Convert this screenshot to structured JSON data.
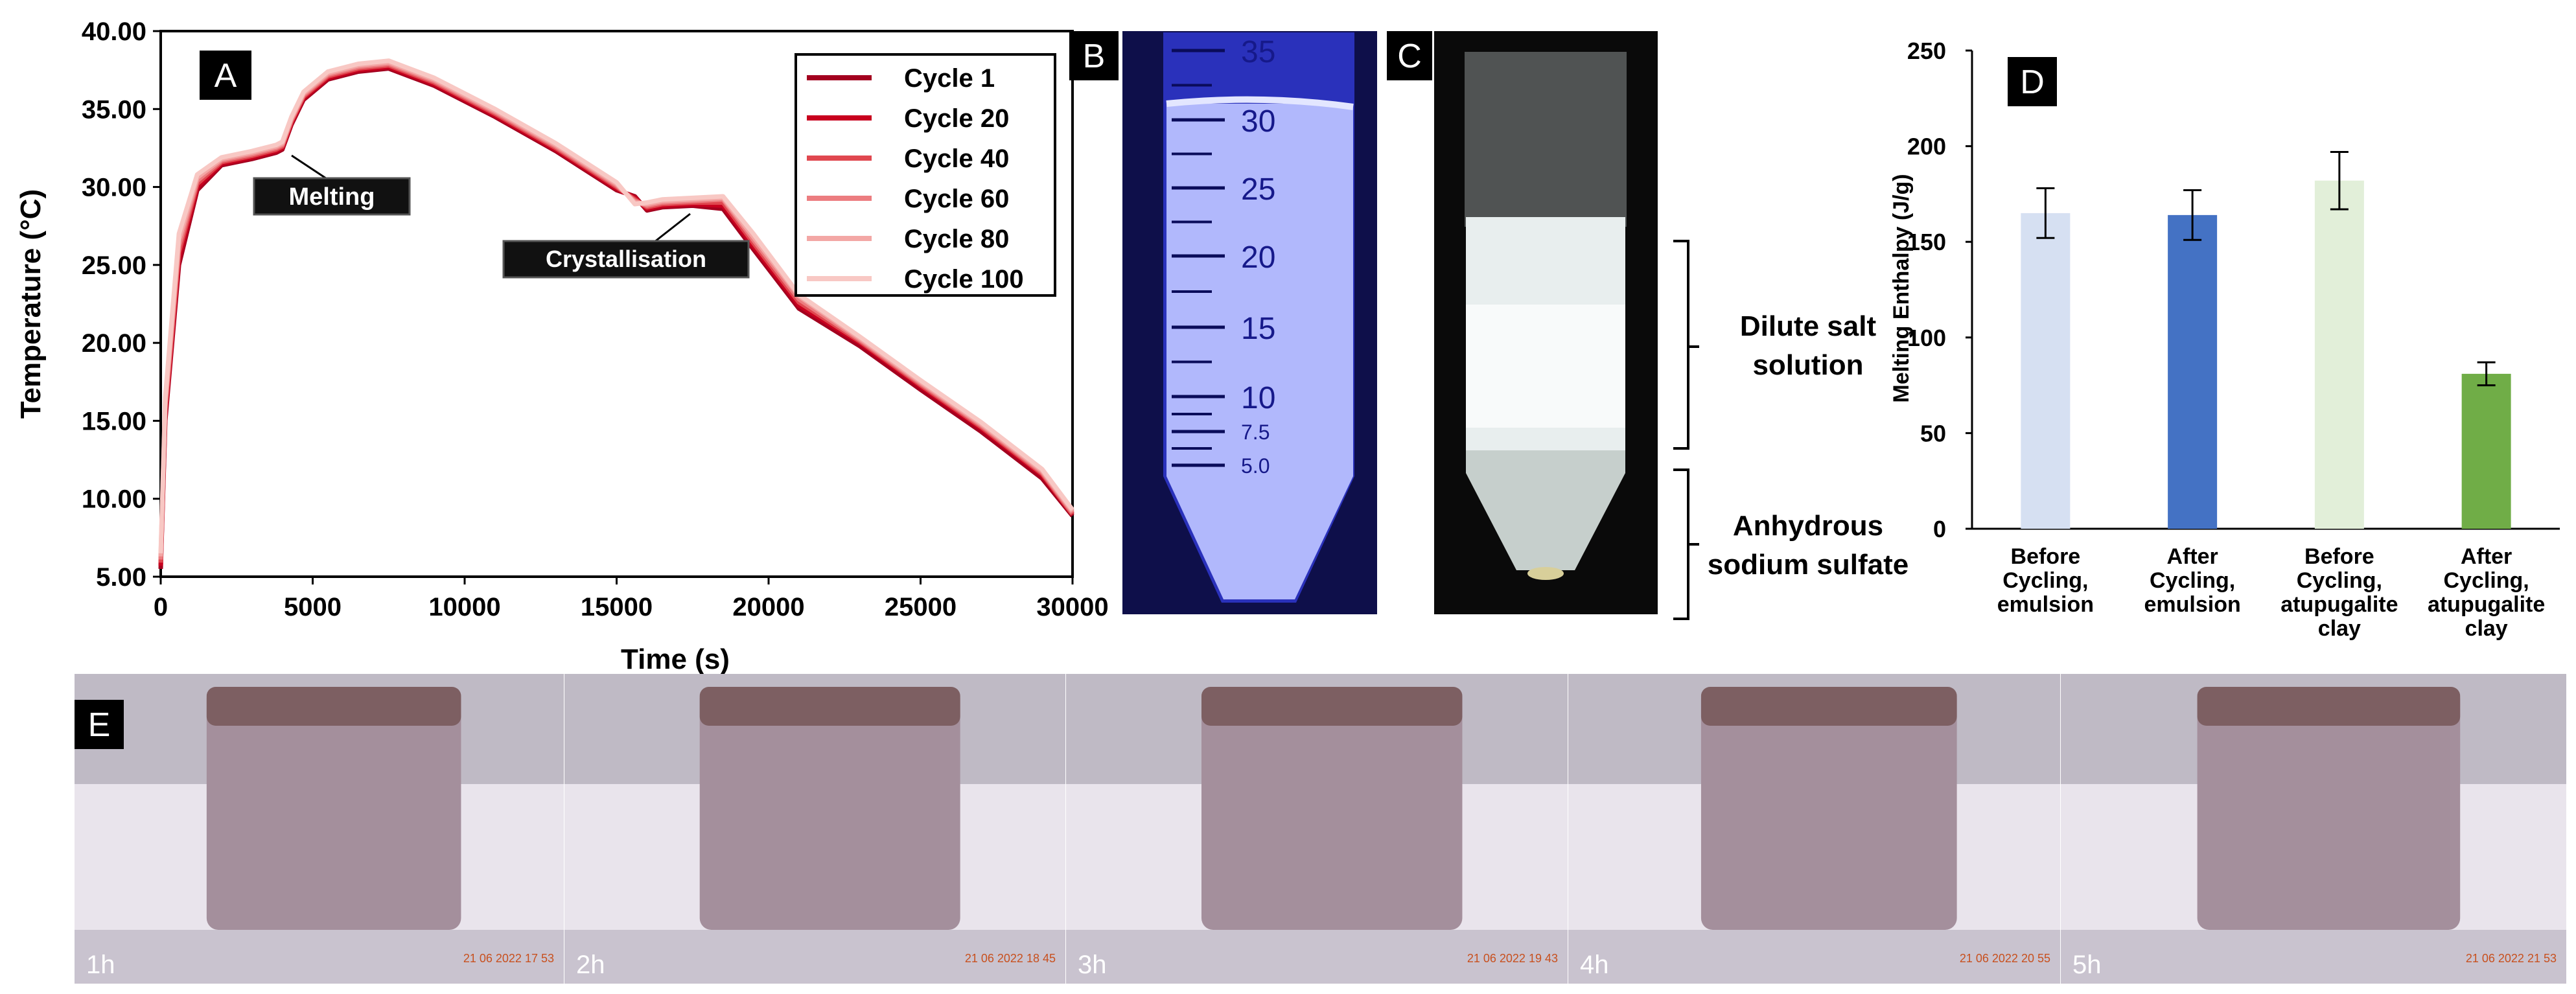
{
  "panels": {
    "a": "A",
    "b": "B",
    "c": "C",
    "d": "D",
    "e": "E"
  },
  "colors": {
    "panel_a_series": [
      "#a3001f",
      "#c8001e",
      "#e0474f",
      "#ec7d80",
      "#f3a7a5",
      "#f8c8c4"
    ],
    "bar_colors": [
      "#d6e0f2",
      "#4472c4",
      "#e2efd9",
      "#70ad47"
    ],
    "photo_dark": "#0e0f4a",
    "label_box": "#000000"
  },
  "chart_data": [
    {
      "type": "line",
      "panel": "A",
      "xlabel": "Time (s)",
      "ylabel": "Temperature (°C)",
      "xlim": [
        0,
        30000
      ],
      "ylim": [
        5,
        40
      ],
      "x_ticks": [
        "0",
        "5000",
        "10000",
        "15000",
        "20000",
        "25000",
        "30000"
      ],
      "y_ticks": [
        "5.00",
        "10.00",
        "15.00",
        "20.00",
        "25.00",
        "30.00",
        "35.00",
        "40.00"
      ],
      "grid": false,
      "legend_position": "top-right",
      "series": [
        {
          "name": "Cycle 1",
          "x": [
            0,
            150,
            600,
            1200,
            2000,
            3000,
            3800,
            4000,
            4300,
            4700,
            5500,
            6500,
            7500,
            9000,
            11000,
            13000,
            15000,
            15600,
            16000,
            16500,
            17500,
            18500,
            19500,
            21000,
            23000,
            25000,
            27000,
            29000,
            30000
          ],
          "y": [
            5.5,
            15,
            25,
            29.8,
            31.4,
            31.8,
            32.2,
            32.4,
            34,
            35.6,
            36.9,
            37.4,
            37.6,
            36.5,
            34.5,
            32.3,
            29.8,
            29.4,
            28.5,
            28.7,
            28.8,
            28.6,
            26,
            22.2,
            19.8,
            17.0,
            14.3,
            11.3,
            8.9
          ]
        },
        {
          "name": "Cycle 20",
          "x": [
            0,
            150,
            600,
            1200,
            2000,
            3000,
            3800,
            4000,
            4300,
            4700,
            5500,
            6500,
            7500,
            9000,
            11000,
            13000,
            15000,
            15600,
            16000,
            16500,
            17500,
            18500,
            19500,
            21000,
            23000,
            25000,
            27000,
            29000,
            30000
          ],
          "y": [
            5.7,
            15.3,
            25.4,
            30.0,
            31.5,
            31.9,
            32.3,
            32.5,
            34.1,
            35.7,
            37.0,
            37.5,
            37.7,
            36.6,
            34.6,
            32.4,
            29.9,
            29.3,
            28.6,
            28.8,
            28.9,
            28.8,
            26.2,
            22.4,
            20.0,
            17.2,
            14.5,
            11.5,
            9.0
          ]
        },
        {
          "name": "Cycle 40",
          "x": [
            0,
            150,
            600,
            1200,
            2000,
            3000,
            3800,
            4000,
            4300,
            4700,
            5500,
            6500,
            7500,
            9000,
            11000,
            13000,
            15000,
            15600,
            16000,
            16500,
            17500,
            18500,
            19500,
            21000,
            23000,
            25000,
            27000,
            29000,
            30000
          ],
          "y": [
            5.9,
            15.6,
            25.8,
            30.2,
            31.6,
            32.0,
            32.4,
            32.6,
            34.2,
            35.8,
            37.1,
            37.6,
            37.8,
            36.7,
            34.7,
            32.5,
            30.0,
            29.2,
            28.7,
            28.9,
            29.0,
            29.0,
            26.4,
            22.6,
            20.1,
            17.3,
            14.6,
            11.6,
            9.0
          ]
        },
        {
          "name": "Cycle 60",
          "x": [
            0,
            150,
            600,
            1200,
            2000,
            3000,
            3800,
            4000,
            4300,
            4700,
            5500,
            6500,
            7500,
            9000,
            11000,
            13000,
            15000,
            15600,
            16000,
            16500,
            17500,
            18500,
            19500,
            21000,
            23000,
            25000,
            27000,
            29000,
            30000
          ],
          "y": [
            6.1,
            15.9,
            26.2,
            30.4,
            31.7,
            32.1,
            32.5,
            32.7,
            34.3,
            35.9,
            37.2,
            37.7,
            37.9,
            36.8,
            34.8,
            32.6,
            30.1,
            29.1,
            28.8,
            29.0,
            29.1,
            29.2,
            26.6,
            22.8,
            20.2,
            17.4,
            14.7,
            11.7,
            9.1
          ]
        },
        {
          "name": "Cycle 80",
          "x": [
            0,
            150,
            600,
            1200,
            2000,
            3000,
            3800,
            4000,
            4300,
            4700,
            5500,
            6500,
            7500,
            9000,
            11000,
            13000,
            15000,
            15600,
            16000,
            16500,
            17500,
            18500,
            19500,
            21000,
            23000,
            25000,
            27000,
            29000,
            30000
          ],
          "y": [
            6.3,
            16.2,
            26.6,
            30.6,
            31.8,
            32.2,
            32.6,
            32.8,
            34.4,
            36.0,
            37.3,
            37.8,
            38.0,
            36.9,
            34.9,
            32.7,
            30.2,
            29.0,
            28.9,
            29.1,
            29.2,
            29.3,
            26.8,
            23.0,
            20.3,
            17.5,
            14.8,
            11.8,
            9.2
          ]
        },
        {
          "name": "Cycle 100",
          "x": [
            0,
            150,
            600,
            1200,
            2000,
            3000,
            3800,
            4000,
            4300,
            4700,
            5500,
            6500,
            7500,
            9000,
            11000,
            13000,
            15000,
            15600,
            16000,
            16500,
            17500,
            18500,
            19500,
            21000,
            23000,
            25000,
            27000,
            29000,
            30000
          ],
          "y": [
            6.5,
            16.5,
            27.0,
            30.8,
            31.9,
            32.3,
            32.7,
            32.9,
            34.5,
            36.1,
            37.4,
            37.9,
            38.1,
            37.0,
            35.0,
            32.8,
            30.3,
            28.9,
            29.0,
            29.2,
            29.3,
            29.4,
            27.0,
            23.1,
            20.4,
            17.6,
            14.9,
            11.9,
            9.3
          ]
        }
      ],
      "annotations": [
        "Melting",
        "Crystallisation"
      ]
    },
    {
      "type": "bar",
      "panel": "D",
      "ylabel": "Melting Enthalpy (J/g)",
      "ylim": [
        0,
        250
      ],
      "y_ticks": [
        "0",
        "50",
        "100",
        "150",
        "200",
        "250"
      ],
      "grid": false,
      "categories": [
        [
          "Before",
          "Cycling,",
          "emulsion"
        ],
        [
          "After",
          "Cycling,",
          "emulsion"
        ],
        [
          "Before",
          "Cycling,",
          "atupugalite",
          "clay"
        ],
        [
          "After",
          "Cycling,",
          "atupugalite",
          "clay"
        ]
      ],
      "values": [
        165,
        164,
        182,
        81
      ],
      "errors": [
        13,
        13,
        15,
        6
      ]
    }
  ],
  "panel_b": {
    "tube_marks": [
      "35",
      "30",
      "25",
      "20",
      "15",
      "10",
      "7.5",
      "5.0"
    ]
  },
  "panel_c": {
    "labels": [
      [
        "Dilute salt",
        "solution"
      ],
      [
        "Anhydrous",
        "sodium sulfate"
      ]
    ]
  },
  "panel_e": {
    "frames": [
      {
        "label": "1h",
        "stamp": "21 06 2022 17 53"
      },
      {
        "label": "2h",
        "stamp": "21 06 2022 18 45"
      },
      {
        "label": "3h",
        "stamp": "21 06 2022 19 43"
      },
      {
        "label": "4h",
        "stamp": "21 06 2022 20 55"
      },
      {
        "label": "5h",
        "stamp": "21 06 2022 21 53"
      }
    ]
  }
}
